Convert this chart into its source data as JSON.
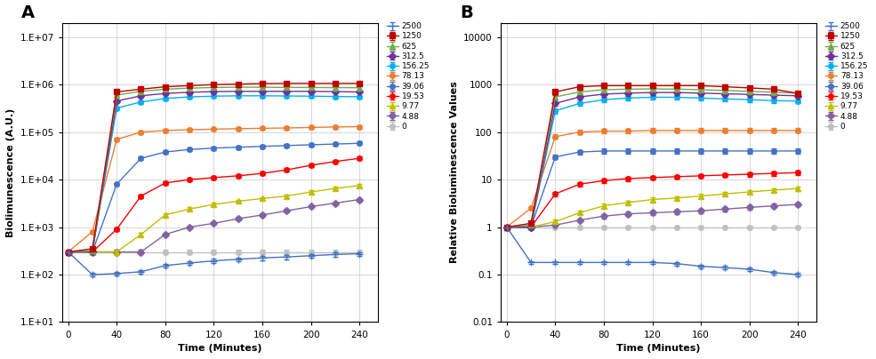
{
  "time_points": [
    0,
    20,
    40,
    60,
    80,
    100,
    120,
    140,
    160,
    180,
    200,
    220,
    240
  ],
  "series_labels": [
    "2500",
    "1250",
    "625",
    "312.5",
    "156.25",
    "78.13",
    "39.06",
    "19.53",
    "9.77",
    "4.88",
    "0"
  ],
  "series_colors": [
    "#4472C4",
    "#C00000",
    "#70AD47",
    "#7030A0",
    "#00B0F0",
    "#ED7D31",
    "#4472C4",
    "#FF0000",
    "#BFBF00",
    "#8064A2",
    "#C0C0C0"
  ],
  "series_markers": [
    "+",
    "s",
    "^",
    "D",
    "o",
    "o",
    "o",
    "o",
    "^",
    "D",
    "o"
  ],
  "panel_A_data": [
    [
      300,
      100,
      105,
      115,
      155,
      175,
      195,
      210,
      225,
      235,
      250,
      265,
      275
    ],
    [
      300,
      350,
      700000,
      800000,
      900000,
      950000,
      1000000,
      1020000,
      1050000,
      1060000,
      1060000,
      1060000,
      1060000
    ],
    [
      300,
      320,
      600000,
      720000,
      800000,
      840000,
      870000,
      880000,
      880000,
      870000,
      870000,
      860000,
      860000
    ],
    [
      300,
      310,
      450000,
      580000,
      650000,
      690000,
      710000,
      720000,
      720000,
      720000,
      720000,
      710000,
      700000
    ],
    [
      300,
      305,
      320000,
      430000,
      510000,
      550000,
      570000,
      580000,
      580000,
      575000,
      570000,
      560000,
      555000
    ],
    [
      300,
      800,
      70000,
      100000,
      108000,
      112000,
      115000,
      118000,
      120000,
      122000,
      125000,
      128000,
      130000
    ],
    [
      300,
      300,
      8000,
      28000,
      38000,
      43000,
      46000,
      48000,
      50000,
      52000,
      54000,
      56000,
      58000
    ],
    [
      300,
      300,
      900,
      4500,
      8500,
      10000,
      11000,
      12000,
      13500,
      16000,
      20000,
      24000,
      28000
    ],
    [
      300,
      300,
      300,
      700,
      1800,
      2400,
      3000,
      3500,
      4000,
      4500,
      5500,
      6500,
      7500
    ],
    [
      300,
      300,
      300,
      300,
      700,
      1000,
      1200,
      1500,
      1800,
      2200,
      2700,
      3200,
      3800
    ],
    [
      300,
      300,
      300,
      300,
      300,
      300,
      300,
      300,
      300,
      300,
      300,
      300,
      300
    ]
  ],
  "panel_A_errors": [
    [
      15,
      10,
      10,
      10,
      12,
      15,
      18,
      20,
      22,
      25,
      25,
      25,
      25
    ],
    [
      20,
      30,
      60000,
      70000,
      80000,
      85000,
      90000,
      90000,
      90000,
      90000,
      90000,
      90000,
      90000
    ],
    [
      20,
      25,
      50000,
      60000,
      65000,
      68000,
      70000,
      70000,
      70000,
      70000,
      70000,
      70000,
      70000
    ],
    [
      20,
      22,
      38000,
      48000,
      52000,
      55000,
      57000,
      58000,
      58000,
      58000,
      58000,
      57000,
      56000
    ],
    [
      20,
      20,
      25000,
      34000,
      40000,
      43000,
      45000,
      46000,
      46000,
      46000,
      46000,
      45000,
      44000
    ],
    [
      20,
      60,
      6000,
      8500,
      9000,
      9500,
      9700,
      9800,
      10000,
      10200,
      10500,
      11000,
      11500
    ],
    [
      20,
      20,
      600,
      2200,
      3000,
      3400,
      3600,
      3800,
      4000,
      4200,
      4400,
      4600,
      4800
    ],
    [
      20,
      20,
      70,
      360,
      700,
      800,
      900,
      1000,
      1100,
      1300,
      1700,
      2000,
      2400
    ],
    [
      20,
      20,
      30,
      55,
      150,
      200,
      250,
      290,
      330,
      370,
      450,
      550,
      650
    ],
    [
      20,
      20,
      30,
      30,
      55,
      80,
      95,
      120,
      145,
      180,
      220,
      270,
      320
    ],
    [
      20,
      20,
      30,
      30,
      30,
      30,
      30,
      30,
      30,
      30,
      30,
      30,
      30
    ]
  ],
  "panel_B_data": [
    [
      1.0,
      0.18,
      0.18,
      0.18,
      0.18,
      0.18,
      0.18,
      0.17,
      0.15,
      0.14,
      0.13,
      0.11,
      0.1
    ],
    [
      1.0,
      1.2,
      700,
      900,
      950,
      950,
      950,
      950,
      950,
      900,
      850,
      800,
      650
    ],
    [
      1.0,
      1.1,
      550,
      700,
      780,
      800,
      810,
      800,
      780,
      750,
      720,
      690,
      660
    ],
    [
      1.0,
      1.0,
      400,
      550,
      630,
      660,
      680,
      680,
      660,
      640,
      620,
      600,
      580
    ],
    [
      1.0,
      1.0,
      280,
      400,
      480,
      520,
      540,
      540,
      520,
      500,
      480,
      460,
      450
    ],
    [
      1.0,
      2.5,
      80,
      100,
      105,
      105,
      108,
      108,
      108,
      108,
      108,
      108,
      108
    ],
    [
      1.0,
      1.0,
      30,
      38,
      40,
      40,
      40,
      40,
      40,
      40,
      40,
      40,
      40
    ],
    [
      1.0,
      1.0,
      5.0,
      8.0,
      9.5,
      10.5,
      11.0,
      11.5,
      12.0,
      12.5,
      13.0,
      13.5,
      14.0
    ],
    [
      1.0,
      1.0,
      1.3,
      2.0,
      2.8,
      3.3,
      3.8,
      4.1,
      4.5,
      5.0,
      5.5,
      6.0,
      6.5
    ],
    [
      1.0,
      1.0,
      1.1,
      1.4,
      1.7,
      1.9,
      2.0,
      2.1,
      2.2,
      2.4,
      2.6,
      2.8,
      3.0
    ],
    [
      1.0,
      1.0,
      1.0,
      1.0,
      1.0,
      1.0,
      1.0,
      1.0,
      1.0,
      1.0,
      1.0,
      1.0,
      1.0
    ]
  ],
  "panel_B_errors": [
    [
      0.05,
      0.015,
      0.015,
      0.015,
      0.015,
      0.015,
      0.015,
      0.014,
      0.013,
      0.012,
      0.011,
      0.01,
      0.009
    ],
    [
      0.08,
      0.1,
      90,
      110,
      100,
      100,
      100,
      100,
      100,
      90,
      85,
      80,
      75
    ],
    [
      0.08,
      0.09,
      65,
      80,
      85,
      88,
      88,
      85,
      82,
      78,
      75,
      72,
      69
    ],
    [
      0.08,
      0.08,
      48,
      62,
      68,
      70,
      72,
      72,
      70,
      68,
      66,
      64,
      62
    ],
    [
      0.08,
      0.08,
      33,
      46,
      54,
      58,
      60,
      60,
      58,
      56,
      54,
      52,
      50
    ],
    [
      0.08,
      0.2,
      8.5,
      10.5,
      11.0,
      11.0,
      11.5,
      11.5,
      11.5,
      11.5,
      11.5,
      11.5,
      11.5
    ],
    [
      0.08,
      0.08,
      3.2,
      4.2,
      4.4,
      4.4,
      4.4,
      4.4,
      4.4,
      4.4,
      4.4,
      4.4,
      4.4
    ],
    [
      0.08,
      0.08,
      0.55,
      0.88,
      1.0,
      1.1,
      1.15,
      1.2,
      1.25,
      1.3,
      1.35,
      1.4,
      1.45
    ],
    [
      0.08,
      0.08,
      0.13,
      0.2,
      0.28,
      0.33,
      0.38,
      0.41,
      0.45,
      0.5,
      0.55,
      0.6,
      0.65
    ],
    [
      0.08,
      0.08,
      0.11,
      0.14,
      0.17,
      0.19,
      0.2,
      0.21,
      0.22,
      0.24,
      0.26,
      0.28,
      0.3
    ],
    [
      0.08,
      0.08,
      0.08,
      0.08,
      0.08,
      0.08,
      0.08,
      0.08,
      0.08,
      0.08,
      0.08,
      0.08,
      0.08
    ]
  ],
  "xlabel": "Time (Minutes)",
  "ylabel_A": "Biolimunescence (A.U.)",
  "ylabel_B": "Relative Bioluminescence Values",
  "panel_A_label": "A",
  "panel_B_label": "B",
  "bg_color": "#FFFFFF",
  "grid_color": "#C0C0C0"
}
